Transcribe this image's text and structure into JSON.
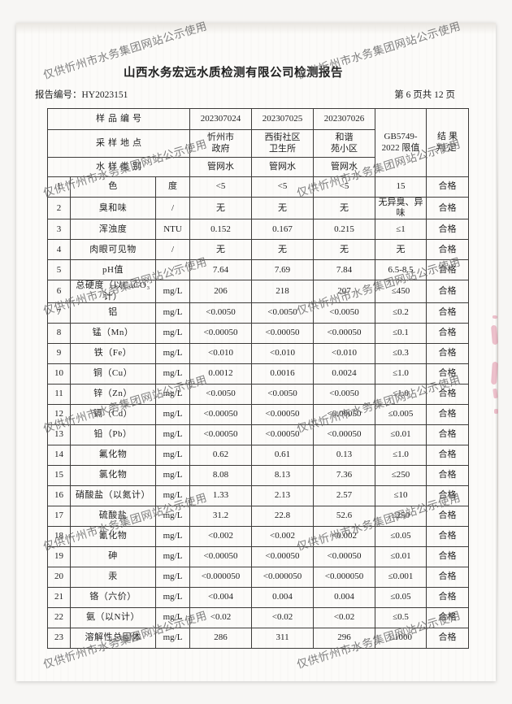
{
  "doc": {
    "title": "山西水务宏远水质检测有限公司检测报告",
    "report_no": "报告编号：HY2023151",
    "page_info": "第 6 页共 12 页"
  },
  "watermark": {
    "text": "仅供忻州市水务集团网站公示使用",
    "color": "#6b6b6b"
  },
  "table": {
    "header": {
      "sample_no_label": "样品编号",
      "sample_nos": [
        "202307024",
        "202307025",
        "202307026"
      ],
      "location_label": "采样地点",
      "locations": [
        "忻州市\n政府",
        "西街社区\n卫生所",
        "和谐\n苑小区"
      ],
      "type_label": "水样类别",
      "types": [
        "管网水",
        "管网水",
        "管网水"
      ],
      "limit_label": "GB5749-\n2022 限值",
      "result_label": "结果\n判定"
    },
    "rows": [
      {
        "no": "1",
        "name": "色",
        "unit": "度",
        "values": [
          "<5",
          "<5",
          "<5"
        ],
        "limit": "15",
        "result": "合格"
      },
      {
        "no": "2",
        "name": "臭和味",
        "unit": "/",
        "values": [
          "无",
          "无",
          "无"
        ],
        "limit": "无异臭、异味",
        "result": "合格"
      },
      {
        "no": "3",
        "name": "浑浊度",
        "unit": "NTU",
        "values": [
          "0.152",
          "0.167",
          "0.215"
        ],
        "limit": "≤1",
        "result": "合格"
      },
      {
        "no": "4",
        "name": "肉眼可见物",
        "unit": "/",
        "values": [
          "无",
          "无",
          "无"
        ],
        "limit": "无",
        "result": "合格"
      },
      {
        "no": "5",
        "name": "pH值",
        "unit": "/",
        "values": [
          "7.64",
          "7.69",
          "7.84"
        ],
        "limit": "6.5-8.5",
        "result": "合格"
      },
      {
        "no": "6",
        "name": "总硬度（以CaCO₃计）",
        "unit": "mg/L",
        "values": [
          "206",
          "218",
          "207"
        ],
        "limit": "≤450",
        "result": "合格"
      },
      {
        "no": "7",
        "name": "铝",
        "unit": "mg/L",
        "values": [
          "<0.0050",
          "<0.0050",
          "<0.0050"
        ],
        "limit": "≤0.2",
        "result": "合格"
      },
      {
        "no": "8",
        "name": "锰（Mn）",
        "unit": "mg/L",
        "values": [
          "<0.00050",
          "<0.00050",
          "<0.00050"
        ],
        "limit": "≤0.1",
        "result": "合格"
      },
      {
        "no": "9",
        "name": "铁（Fe）",
        "unit": "mg/L",
        "values": [
          "<0.010",
          "<0.010",
          "<0.010"
        ],
        "limit": "≤0.3",
        "result": "合格"
      },
      {
        "no": "10",
        "name": "铜（Cu）",
        "unit": "mg/L",
        "values": [
          "0.0012",
          "0.0016",
          "0.0024"
        ],
        "limit": "≤1.0",
        "result": "合格"
      },
      {
        "no": "11",
        "name": "锌（Zn）",
        "unit": "mg/L",
        "values": [
          "<0.0050",
          "<0.0050",
          "<0.0050"
        ],
        "limit": "≤1.0",
        "result": "合格"
      },
      {
        "no": "12",
        "name": "镉（Cd）",
        "unit": "mg/L",
        "values": [
          "<0.00050",
          "<0.00050",
          "<0.00050"
        ],
        "limit": "≤0.005",
        "result": "合格"
      },
      {
        "no": "13",
        "name": "铅（Pb）",
        "unit": "mg/L",
        "values": [
          "<0.00050",
          "<0.00050",
          "<0.00050"
        ],
        "limit": "≤0.01",
        "result": "合格"
      },
      {
        "no": "14",
        "name": "氟化物",
        "unit": "mg/L",
        "values": [
          "0.62",
          "0.61",
          "0.13"
        ],
        "limit": "≤1.0",
        "result": "合格"
      },
      {
        "no": "15",
        "name": "氯化物",
        "unit": "mg/L",
        "values": [
          "8.08",
          "8.13",
          "7.36"
        ],
        "limit": "≤250",
        "result": "合格"
      },
      {
        "no": "16",
        "name": "硝酸盐（以氮计）",
        "unit": "mg/L",
        "values": [
          "1.33",
          "2.13",
          "2.57"
        ],
        "limit": "≤10",
        "result": "合格"
      },
      {
        "no": "17",
        "name": "硫酸盐",
        "unit": "mg/L",
        "values": [
          "31.2",
          "22.8",
          "52.6"
        ],
        "limit": "≤250",
        "result": "合格"
      },
      {
        "no": "18",
        "name": "氰化物",
        "unit": "mg/L",
        "values": [
          "<0.002",
          "<0.002",
          "<0.002"
        ],
        "limit": "≤0.05",
        "result": "合格"
      },
      {
        "no": "19",
        "name": "砷",
        "unit": "mg/L",
        "values": [
          "<0.00050",
          "<0.00050",
          "<0.00050"
        ],
        "limit": "≤0.01",
        "result": "合格"
      },
      {
        "no": "20",
        "name": "汞",
        "unit": "mg/L",
        "values": [
          "<0.000050",
          "<0.000050",
          "<0.000050"
        ],
        "limit": "≤0.001",
        "result": "合格"
      },
      {
        "no": "21",
        "name": "铬（六价）",
        "unit": "mg/L",
        "values": [
          "<0.004",
          "0.004",
          "0.004"
        ],
        "limit": "≤0.05",
        "result": "合格"
      },
      {
        "no": "22",
        "name": "氨（以N计）",
        "unit": "mg/L",
        "values": [
          "<0.02",
          "<0.02",
          "<0.02"
        ],
        "limit": "≤0.5",
        "result": "合格"
      },
      {
        "no": "23",
        "name": "溶解性总固体",
        "unit": "mg/L",
        "values": [
          "286",
          "311",
          "296"
        ],
        "limit": "≤1000",
        "result": "合格"
      }
    ]
  }
}
